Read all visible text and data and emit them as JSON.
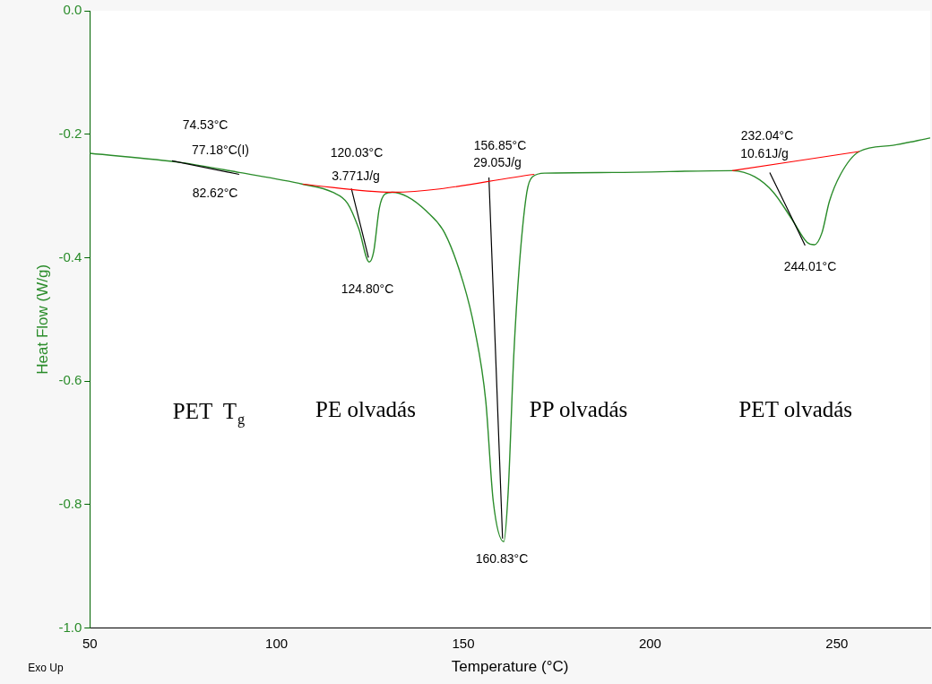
{
  "chart_data": {
    "type": "line",
    "xlabel": "Temperature (°C)",
    "ylabel": "Heat Flow (W/g)",
    "xlim": [
      50,
      275
    ],
    "ylim": [
      -1.0,
      0.0
    ],
    "xticks": [
      50,
      100,
      150,
      200,
      250
    ],
    "yticks": [
      {
        "value": -1.0,
        "label": "-1.0"
      },
      {
        "value": -0.8,
        "label": "-0.8"
      },
      {
        "value": -0.6,
        "label": "-0.6"
      },
      {
        "value": -0.4,
        "label": "-0.4"
      },
      {
        "value": -0.2,
        "label": "-0.2"
      },
      {
        "value": 0,
        "label": "0.0"
      }
    ],
    "grid": false,
    "legend": false,
    "marker": "none",
    "line_style": "solid",
    "series": [
      {
        "color": "#2a8c2a",
        "x": [
          50,
          74.5,
          90,
          107,
          115,
          119,
          122,
          124.8,
          126,
          127.5,
          129,
          131,
          135,
          140,
          145,
          150,
          153,
          156,
          158,
          160.83,
          162,
          163.5,
          165,
          167,
          168.5,
          172,
          190,
          222,
          228,
          233,
          238,
          242,
          244,
          246,
          248,
          251,
          256,
          265,
          275
        ],
        "values": [
          -0.231,
          -0.246,
          -0.262,
          -0.281,
          -0.294,
          -0.312,
          -0.353,
          -0.407,
          -0.39,
          -0.32,
          -0.297,
          -0.294,
          -0.301,
          -0.324,
          -0.36,
          -0.441,
          -0.515,
          -0.632,
          -0.794,
          -0.86,
          -0.78,
          -0.559,
          -0.412,
          -0.294,
          -0.269,
          -0.263,
          -0.262,
          -0.259,
          -0.269,
          -0.294,
          -0.338,
          -0.375,
          -0.379,
          -0.36,
          -0.309,
          -0.265,
          -0.228,
          -0.218,
          -0.206
        ]
      },
      {
        "color": "#ff0000",
        "x": [
          107,
          131,
          169
        ],
        "values": [
          -0.281,
          -0.294,
          -0.265
        ]
      },
      {
        "color": "#ff0000",
        "x": [
          222,
          256
        ],
        "values": [
          -0.259,
          -0.228
        ]
      },
      {
        "color": "#000000",
        "x": [
          72,
          90
        ],
        "values": [
          -0.243,
          -0.265
        ]
      },
      {
        "color": "#000000",
        "x": [
          120.03,
          124.6
        ],
        "values": [
          -0.288,
          -0.4
        ]
      },
      {
        "color": "#000000",
        "x": [
          156.85,
          160.5
        ],
        "values": [
          -0.27,
          -0.855
        ]
      },
      {
        "color": "#000000",
        "x": [
          232.04,
          241.5
        ],
        "values": [
          -0.262,
          -0.38
        ]
      }
    ],
    "annotations": [
      "74.53°C",
      "77.18°C(I)",
      "82.62°C",
      "120.03°C",
      "3.771J/g",
      "124.80°C",
      "156.85°C",
      "29.05J/g",
      "160.83°C",
      "232.04°C",
      "10.61J/g",
      "244.01°C",
      "PET  T$_{g}$",
      "PE olvadás",
      "PP olvadás",
      "PET olvadás",
      "Exo Up"
    ]
  }
}
